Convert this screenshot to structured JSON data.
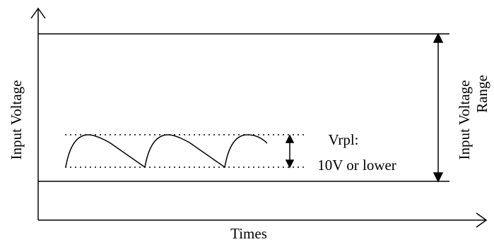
{
  "labels": {
    "x_axis": "Times",
    "y_axis": "Input Voltage",
    "range_line1": "Input Voltage",
    "range_line2": "Range",
    "ripple_line1": "Vrpl:",
    "ripple_line2": "10V or lower"
  },
  "colors": {
    "line": "#000000",
    "background": "#ffffff"
  }
}
